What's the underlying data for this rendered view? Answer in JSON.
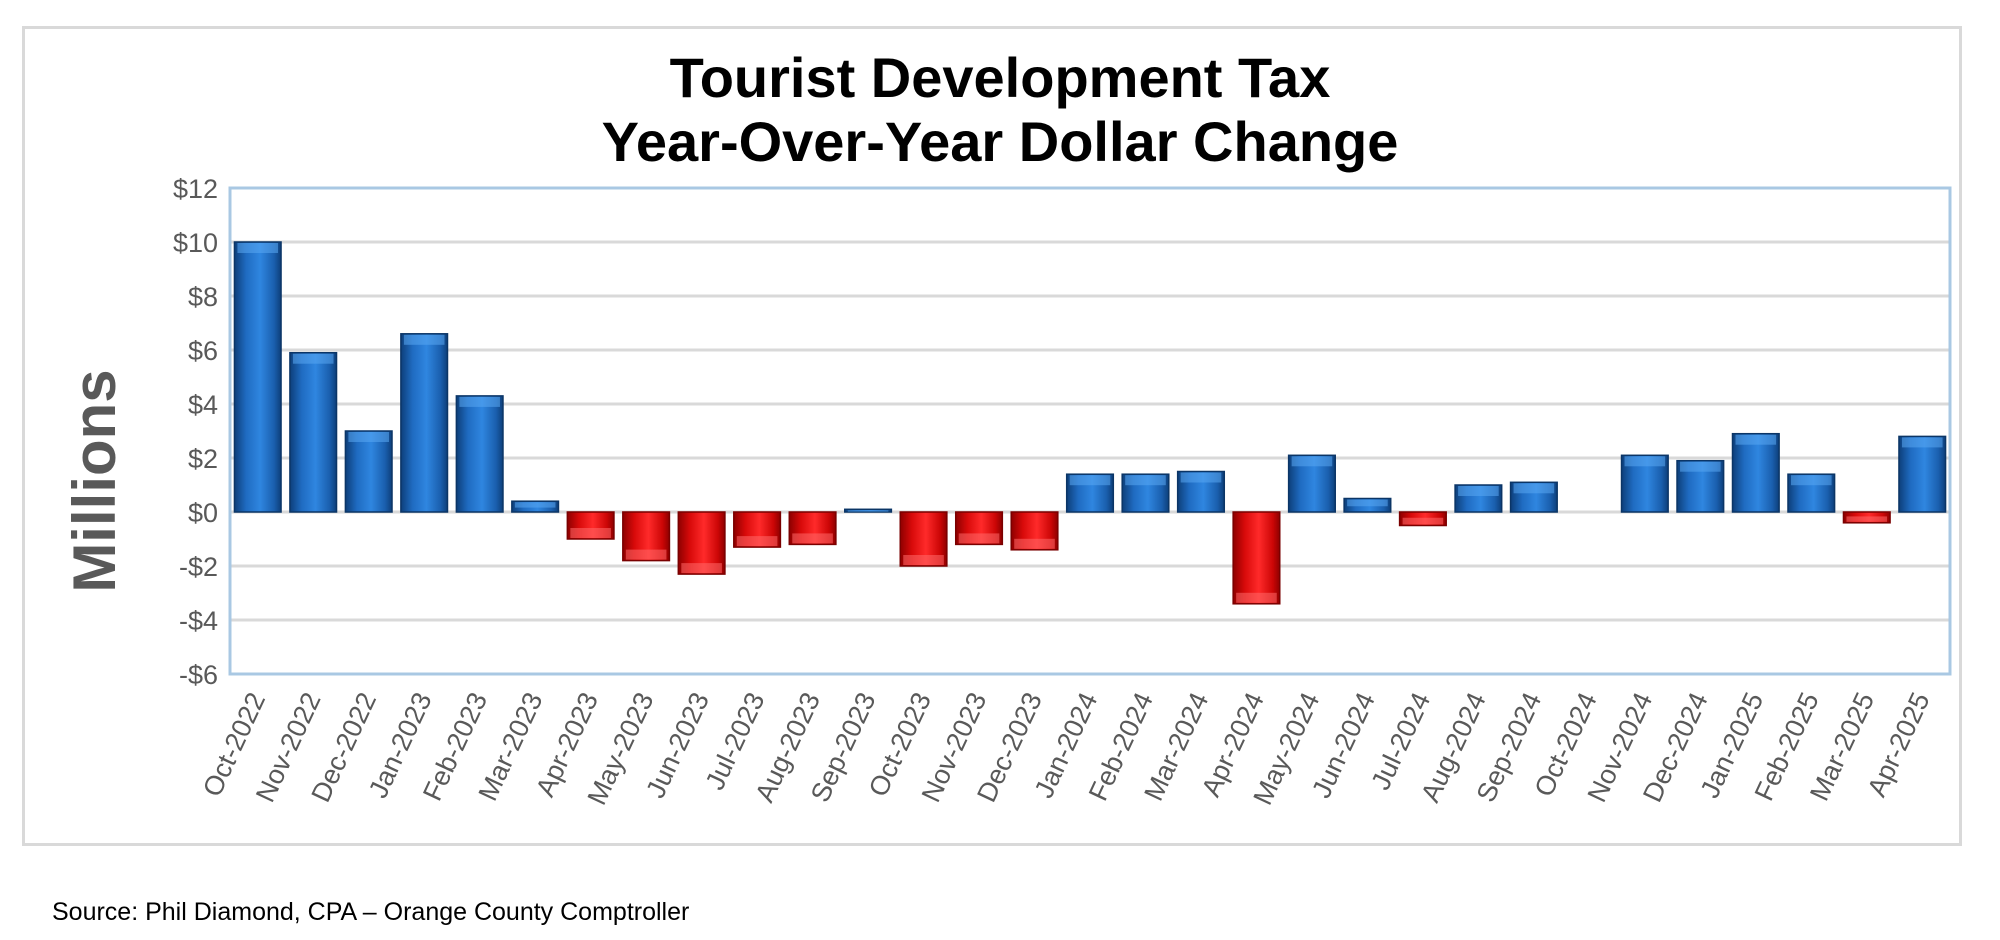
{
  "chart_data": {
    "type": "bar",
    "title_line1": "Tourist Development Tax",
    "title_line2": "Year-Over-Year Dollar Change",
    "ylabel": "Millions",
    "xlabel": "",
    "ylim": [
      -6,
      12
    ],
    "yticks": [
      12,
      10,
      8,
      6,
      4,
      2,
      0,
      -2,
      -4,
      -6
    ],
    "ytick_labels": [
      "$12",
      "$10",
      "$8",
      "$6",
      "$4",
      "$2",
      "$0",
      "-$2",
      "-$4",
      "-$6"
    ],
    "grid": true,
    "legend": "none",
    "positive_color": "#1f6bc1",
    "negative_color": "#e81010",
    "categories": [
      "Oct-2022",
      "Nov-2022",
      "Dec-2022",
      "Jan-2023",
      "Feb-2023",
      "Mar-2023",
      "Apr-2023",
      "May-2023",
      "Jun-2023",
      "Jul-2023",
      "Aug-2023",
      "Sep-2023",
      "Oct-2023",
      "Nov-2023",
      "Dec-2023",
      "Jan-2024",
      "Feb-2024",
      "Mar-2024",
      "Apr-2024",
      "May-2024",
      "Jun-2024",
      "Jul-2024",
      "Aug-2024",
      "Sep-2024",
      "Oct-2024",
      "Nov-2024",
      "Dec-2024",
      "Jan-2025",
      "Feb-2025",
      "Mar-2025",
      "Apr-2025"
    ],
    "values": [
      10.0,
      5.9,
      3.0,
      6.6,
      4.3,
      0.4,
      -1.0,
      -1.8,
      -2.3,
      -1.3,
      -1.2,
      0.1,
      -2.0,
      -1.2,
      -1.4,
      1.4,
      1.4,
      1.5,
      -3.4,
      2.1,
      0.5,
      -0.5,
      1.0,
      1.1,
      0.0,
      2.1,
      1.9,
      2.9,
      1.4,
      -0.4,
      2.8
    ]
  },
  "source": "Source:  Phil Diamond, CPA – Orange County Comptroller"
}
